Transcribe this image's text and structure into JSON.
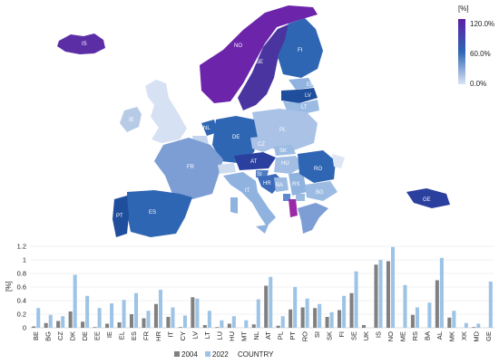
{
  "map": {
    "legend": {
      "unit": "[%]",
      "max_label": "120.0%",
      "mid_label": "60.0%",
      "min_label": "0.0%",
      "color_high": "#5b1fa6",
      "color_mid": "#2f66b3",
      "color_low": "#d9e4f5"
    },
    "country_labels": [
      "IS",
      "NO",
      "SE",
      "FI",
      "EE",
      "LV",
      "LT",
      "IE",
      "PL",
      "NL",
      "DE",
      "CZ",
      "SK",
      "FR",
      "AT",
      "HU",
      "RO",
      "SI",
      "HR",
      "RS",
      "BA",
      "BG",
      "IT",
      "ES",
      "PT",
      "GE"
    ]
  },
  "chart_data": {
    "type": "bar",
    "categories": [
      "BE",
      "BG",
      "CZ",
      "DK",
      "DE",
      "EE",
      "IE",
      "EL",
      "ES",
      "FR",
      "HR",
      "IT",
      "CY",
      "LV",
      "LT",
      "LU",
      "HU",
      "MT",
      "NL",
      "AT",
      "PL",
      "PT",
      "RO",
      "SI",
      "SK",
      "FI",
      "SE",
      "UK",
      "IS",
      "NO",
      "ME",
      "RS",
      "BA",
      "AL",
      "MK",
      "XK",
      "MD",
      "GE"
    ],
    "series": [
      {
        "name": "2004",
        "color": "#808080",
        "values": [
          0.02,
          0.07,
          0.1,
          0.24,
          0.09,
          0.01,
          0.06,
          0.08,
          0.2,
          0.14,
          0.35,
          0.16,
          0.01,
          0.45,
          0.04,
          0.01,
          0.06,
          0.0,
          0.05,
          0.62,
          0.03,
          0.27,
          0.3,
          0.29,
          0.16,
          0.26,
          0.51,
          0.04,
          0.93,
          0.98,
          0.0,
          0.19,
          0.0,
          0.7,
          0.15,
          0.0,
          0.01,
          0.0
        ]
      },
      {
        "name": "2022",
        "color": "#9dc3e6",
        "values": [
          0.29,
          0.19,
          0.17,
          0.78,
          0.47,
          0.29,
          0.36,
          0.41,
          0.51,
          0.25,
          0.56,
          0.3,
          0.18,
          0.43,
          0.25,
          0.11,
          0.17,
          0.11,
          0.42,
          0.75,
          0.17,
          0.6,
          0.43,
          0.35,
          0.23,
          0.47,
          0.83,
          0.0,
          1.0,
          1.19,
          0.63,
          0.3,
          0.37,
          1.03,
          0.25,
          0.07,
          0.06,
          0.68
        ]
      }
    ],
    "xlabel": "COUNTRY",
    "ylabel": "[%]",
    "ylim": [
      0,
      1.2
    ],
    "yticks": [
      "0",
      "0.2",
      "0.4",
      "0.6",
      "0.8",
      "1",
      "1.2"
    ],
    "grid": true,
    "legend": "bottom"
  }
}
